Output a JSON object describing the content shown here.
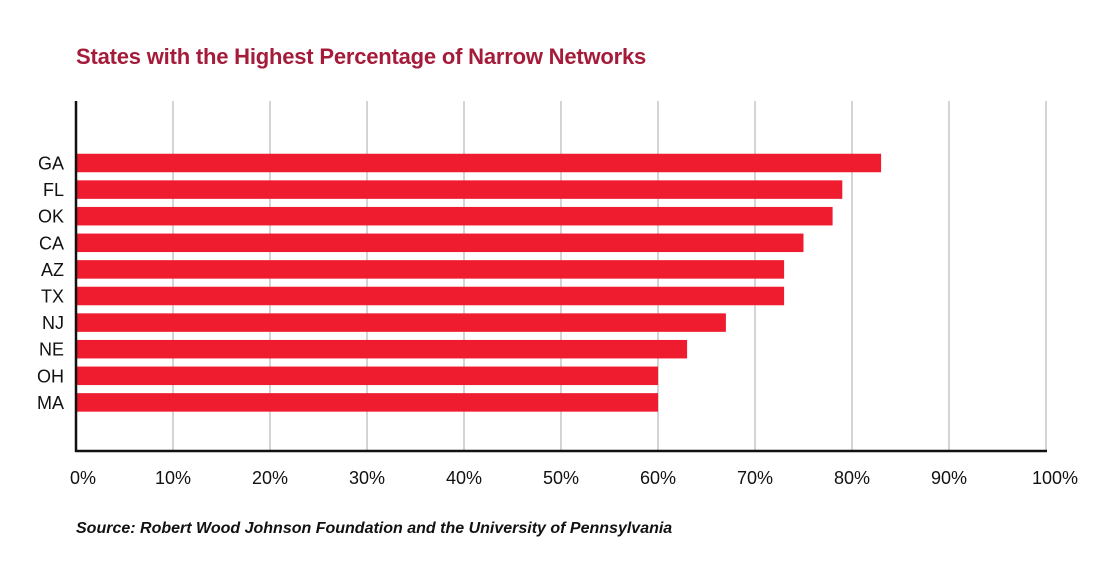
{
  "chart_data": {
    "type": "bar",
    "orientation": "horizontal",
    "title": "States with the Highest Percentage of Narrow Networks",
    "categories": [
      "GA",
      "FL",
      "OK",
      "CA",
      "AZ",
      "TX",
      "NJ",
      "NE",
      "OH",
      "MA"
    ],
    "values": [
      83,
      79,
      78,
      75,
      73,
      73,
      67,
      63,
      60,
      60
    ],
    "xlim": [
      0,
      100
    ],
    "xticks": [
      0,
      10,
      20,
      30,
      40,
      50,
      60,
      70,
      80,
      90,
      100
    ],
    "xtick_labels": [
      "0%",
      "10%",
      "20%",
      "30%",
      "40%",
      "50%",
      "60%",
      "70%",
      "80%",
      "90%",
      "100%"
    ],
    "grid": "vertical",
    "bar_color": "#ee1c2e",
    "title_color": "#a51c3a",
    "source": "Source: Robert Wood Johnson Foundation and the University of Pennsylvania"
  }
}
